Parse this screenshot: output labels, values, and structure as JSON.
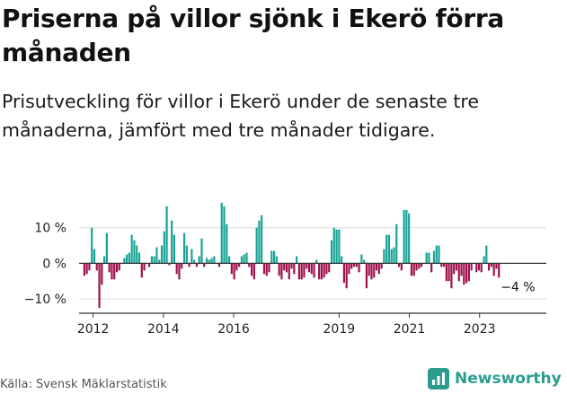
{
  "header": {
    "title": "Priserna på villor sjönk i Ekerö förra månaden",
    "subtitle": "Prisutveckling för villor i Ekerö under de senaste tre månaderna, jämfört med tre månader tidigare."
  },
  "footer": {
    "source": "Källa: Svensk Mäklarstatistik",
    "brand": "Newsworthy"
  },
  "colors": {
    "positive": "#17a294",
    "negative": "#9e0f4c",
    "grid": "#dddddd",
    "axis": "#333333",
    "brand": "#2a9d8f"
  },
  "chart_data": {
    "type": "bar",
    "title": "Priserna på villor sjönk i Ekerö förra månaden",
    "xlabel": "",
    "ylabel": "",
    "ylim": [
      -14,
      20
    ],
    "yticks": [
      -10,
      0,
      10
    ],
    "ytick_labels": [
      "−10 %",
      "0 %",
      "10 %"
    ],
    "x_start": 2011.75,
    "x_end": 2023.55,
    "xlim": [
      2011.6,
      2024.9
    ],
    "xticks": [
      2012,
      2014,
      2016,
      2019,
      2021,
      2023
    ],
    "end_label": "−4 %",
    "values": [
      -3.5,
      -3,
      -2,
      10,
      4,
      -2,
      -12.5,
      -6,
      2,
      8.5,
      -2.5,
      -4.5,
      -4.5,
      -2.5,
      -2,
      0,
      1.5,
      2.5,
      3,
      8,
      6.5,
      5,
      3,
      -4,
      -2,
      0,
      -1,
      2,
      2,
      4.5,
      1,
      5,
      9,
      16,
      -0.5,
      12,
      8,
      -3,
      -4.5,
      -1.5,
      8.5,
      5,
      -1,
      4,
      1,
      -1,
      2,
      7,
      -1,
      1.5,
      1,
      1.5,
      2,
      0,
      -1,
      17,
      16,
      11,
      2,
      -3,
      -4.5,
      -2,
      -1,
      2,
      2.5,
      3,
      -1,
      -3.5,
      -4.5,
      10,
      12,
      13.5,
      -3,
      -3.5,
      -2.5,
      3.5,
      3.5,
      2,
      -3.5,
      -4.5,
      -2,
      -2.5,
      -4.5,
      -1.5,
      -3,
      2,
      -4.5,
      -4.5,
      -4,
      -1.5,
      -2.5,
      -3,
      -4,
      1,
      -4.5,
      -4.5,
      -4,
      -3,
      -2.5,
      6.5,
      10,
      9.5,
      9.5,
      2,
      -5.5,
      -7,
      -3,
      -1.5,
      -1,
      -1,
      -2.5,
      2.5,
      1,
      -7,
      -3.5,
      -4.5,
      -4,
      -2,
      -3,
      -1.5,
      4,
      8,
      8,
      4,
      4.5,
      11,
      -1,
      -2,
      15,
      15,
      14,
      -3.5,
      -3.5,
      -2,
      -1.5,
      -1,
      0,
      3,
      3,
      -2.5,
      3.5,
      5,
      5,
      -1,
      -1,
      -5,
      -5,
      -7,
      -3,
      -2,
      -5,
      -3.5,
      -6,
      -5.5,
      -5,
      -2,
      0,
      -2.5,
      -2,
      -2.5,
      2,
      5,
      -2,
      -1,
      -3.5,
      -1.5,
      -4
    ]
  }
}
